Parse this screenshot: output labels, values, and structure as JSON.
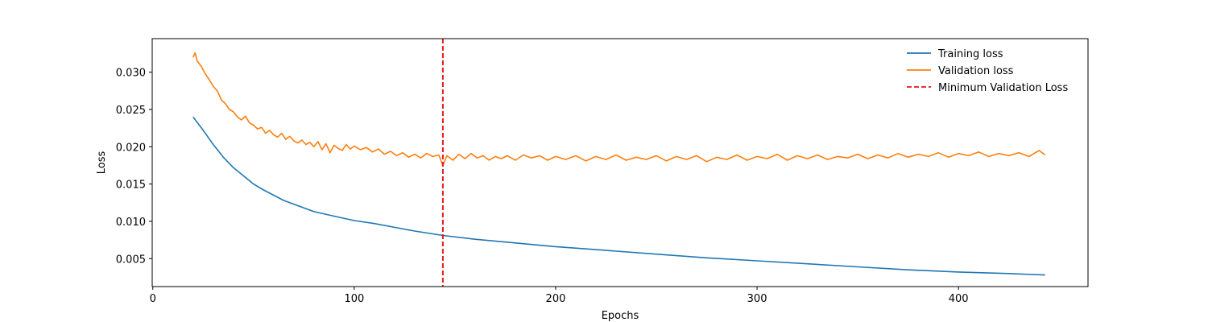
{
  "chart_data": {
    "type": "line",
    "title": "",
    "xlabel": "Epochs",
    "ylabel": "Loss",
    "xlim": [
      -0.3,
      464.3
    ],
    "ylim": [
      0.00125,
      0.0345
    ],
    "xticks": [
      0,
      100,
      200,
      300,
      400
    ],
    "yticks": [
      0.005,
      0.01,
      0.015,
      0.02,
      0.025,
      0.03
    ],
    "ytick_labels": [
      "0.005",
      "0.010",
      "0.015",
      "0.020",
      "0.025",
      "0.030"
    ],
    "grid": false,
    "legend_position": "top-right",
    "series": [
      {
        "name": "Training loss",
        "color": "#1f77b4",
        "style": "solid",
        "points": [
          [
            20,
            0.024
          ],
          [
            25,
            0.0222
          ],
          [
            30,
            0.0203
          ],
          [
            35,
            0.0186
          ],
          [
            40,
            0.0172
          ],
          [
            45,
            0.0161
          ],
          [
            50,
            0.015
          ],
          [
            55,
            0.0142
          ],
          [
            60,
            0.0135
          ],
          [
            65,
            0.0128
          ],
          [
            70,
            0.0123
          ],
          [
            75,
            0.0118
          ],
          [
            80,
            0.0113
          ],
          [
            90,
            0.0107
          ],
          [
            100,
            0.0101
          ],
          [
            110,
            0.0097
          ],
          [
            120,
            0.0092
          ],
          [
            130,
            0.0087
          ],
          [
            144,
            0.0081
          ],
          [
            160,
            0.0076
          ],
          [
            180,
            0.0071
          ],
          [
            200,
            0.0066
          ],
          [
            220,
            0.0062
          ],
          [
            250,
            0.0056
          ],
          [
            275,
            0.0051
          ],
          [
            300,
            0.0047
          ],
          [
            325,
            0.0043
          ],
          [
            350,
            0.0039
          ],
          [
            375,
            0.0035
          ],
          [
            400,
            0.0032
          ],
          [
            425,
            0.003
          ],
          [
            443,
            0.0028
          ]
        ]
      },
      {
        "name": "Validation loss",
        "color": "#ff7f0e",
        "style": "solid",
        "points": [
          [
            20,
            0.032
          ],
          [
            21,
            0.0326
          ],
          [
            22,
            0.0315
          ],
          [
            24,
            0.0308
          ],
          [
            26,
            0.0298
          ],
          [
            28,
            0.029
          ],
          [
            30,
            0.0281
          ],
          [
            32,
            0.0275
          ],
          [
            34,
            0.0263
          ],
          [
            36,
            0.0258
          ],
          [
            38,
            0.025
          ],
          [
            40,
            0.0247
          ],
          [
            42,
            0.024
          ],
          [
            44,
            0.0236
          ],
          [
            46,
            0.0241
          ],
          [
            48,
            0.0232
          ],
          [
            50,
            0.0229
          ],
          [
            52,
            0.0224
          ],
          [
            54,
            0.0226
          ],
          [
            56,
            0.0218
          ],
          [
            58,
            0.0222
          ],
          [
            60,
            0.0216
          ],
          [
            62,
            0.0213
          ],
          [
            64,
            0.0218
          ],
          [
            66,
            0.021
          ],
          [
            68,
            0.0214
          ],
          [
            70,
            0.0208
          ],
          [
            72,
            0.0205
          ],
          [
            74,
            0.0209
          ],
          [
            76,
            0.0203
          ],
          [
            78,
            0.0206
          ],
          [
            80,
            0.02
          ],
          [
            82,
            0.0207
          ],
          [
            84,
            0.0196
          ],
          [
            86,
            0.0204
          ],
          [
            88,
            0.0192
          ],
          [
            90,
            0.0202
          ],
          [
            92,
            0.0198
          ],
          [
            94,
            0.0195
          ],
          [
            96,
            0.0203
          ],
          [
            98,
            0.0197
          ],
          [
            100,
            0.0201
          ],
          [
            103,
            0.0196
          ],
          [
            106,
            0.0199
          ],
          [
            109,
            0.0193
          ],
          [
            112,
            0.0197
          ],
          [
            115,
            0.019
          ],
          [
            118,
            0.0194
          ],
          [
            121,
            0.0188
          ],
          [
            124,
            0.0192
          ],
          [
            127,
            0.0186
          ],
          [
            130,
            0.019
          ],
          [
            133,
            0.0185
          ],
          [
            136,
            0.0191
          ],
          [
            139,
            0.0187
          ],
          [
            142,
            0.0189
          ],
          [
            144,
            0.0175
          ],
          [
            146,
            0.0188
          ],
          [
            149,
            0.0182
          ],
          [
            152,
            0.019
          ],
          [
            155,
            0.0184
          ],
          [
            158,
            0.0191
          ],
          [
            161,
            0.0185
          ],
          [
            164,
            0.0188
          ],
          [
            167,
            0.0182
          ],
          [
            170,
            0.0187
          ],
          [
            173,
            0.0184
          ],
          [
            176,
            0.0188
          ],
          [
            180,
            0.0182
          ],
          [
            184,
            0.0189
          ],
          [
            188,
            0.0185
          ],
          [
            192,
            0.0188
          ],
          [
            196,
            0.0182
          ],
          [
            200,
            0.0187
          ],
          [
            205,
            0.0183
          ],
          [
            210,
            0.0188
          ],
          [
            215,
            0.0181
          ],
          [
            220,
            0.0187
          ],
          [
            225,
            0.0183
          ],
          [
            230,
            0.0189
          ],
          [
            235,
            0.0182
          ],
          [
            240,
            0.0186
          ],
          [
            245,
            0.0183
          ],
          [
            250,
            0.0188
          ],
          [
            255,
            0.0181
          ],
          [
            260,
            0.0187
          ],
          [
            265,
            0.0183
          ],
          [
            270,
            0.0188
          ],
          [
            275,
            0.018
          ],
          [
            280,
            0.0186
          ],
          [
            285,
            0.0183
          ],
          [
            290,
            0.0189
          ],
          [
            295,
            0.0182
          ],
          [
            300,
            0.0187
          ],
          [
            305,
            0.0184
          ],
          [
            310,
            0.019
          ],
          [
            315,
            0.0182
          ],
          [
            320,
            0.0188
          ],
          [
            325,
            0.0184
          ],
          [
            330,
            0.0189
          ],
          [
            335,
            0.0183
          ],
          [
            340,
            0.0187
          ],
          [
            345,
            0.0185
          ],
          [
            350,
            0.019
          ],
          [
            355,
            0.0184
          ],
          [
            360,
            0.0189
          ],
          [
            365,
            0.0185
          ],
          [
            370,
            0.0191
          ],
          [
            375,
            0.0186
          ],
          [
            380,
            0.019
          ],
          [
            385,
            0.0187
          ],
          [
            390,
            0.0192
          ],
          [
            395,
            0.0186
          ],
          [
            400,
            0.0191
          ],
          [
            405,
            0.0188
          ],
          [
            410,
            0.0193
          ],
          [
            415,
            0.0187
          ],
          [
            420,
            0.0191
          ],
          [
            425,
            0.0188
          ],
          [
            430,
            0.0192
          ],
          [
            435,
            0.0187
          ],
          [
            440,
            0.0195
          ],
          [
            443,
            0.0189
          ]
        ]
      }
    ],
    "vlines": [
      {
        "name": "Minimum Validation Loss",
        "x": 144,
        "color": "#e31a1c",
        "style": "dashed"
      }
    ]
  }
}
